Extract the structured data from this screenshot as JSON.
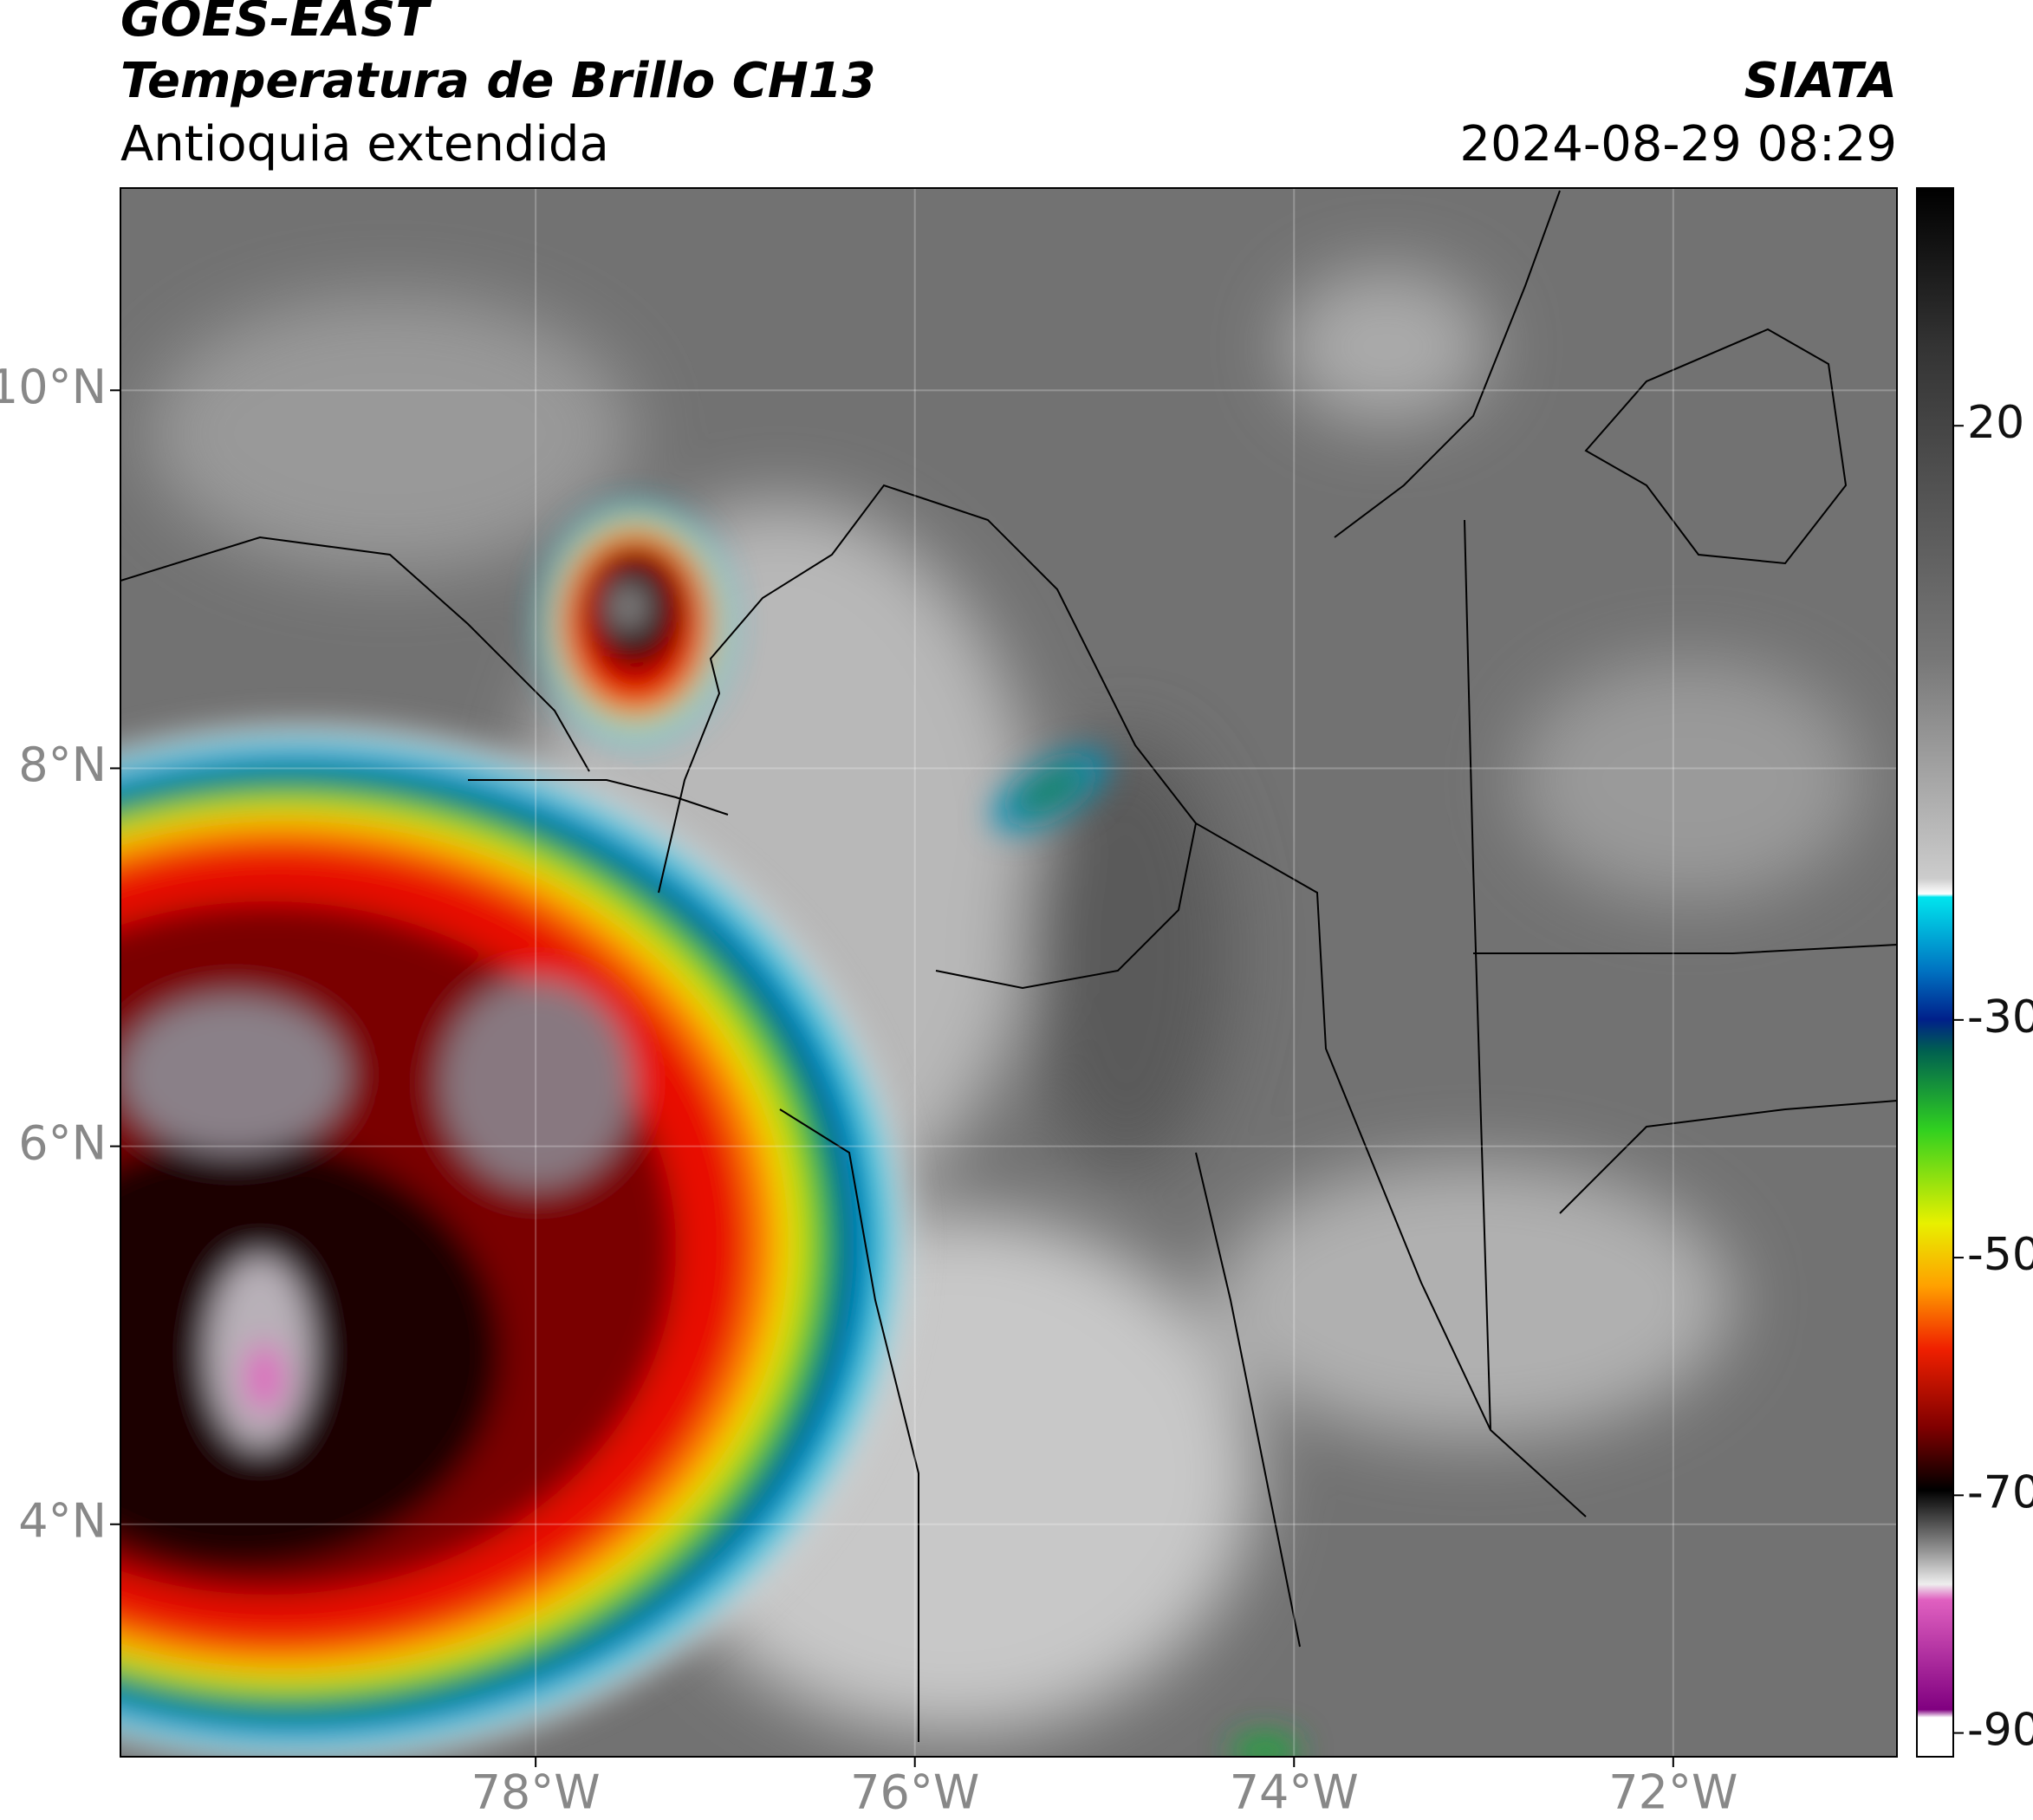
{
  "header": {
    "title": "GOES-EAST",
    "subtitle": "Temperatura de Brillo CH13",
    "region": "Antioquia extendida",
    "source": "SIATA",
    "datetime": "2024-08-29 08:29"
  },
  "map": {
    "xlim": [
      -80.19,
      -70.82
    ],
    "ylim": [
      2.77,
      11.07
    ],
    "xticks": [
      {
        "value": -78,
        "label": "78°W"
      },
      {
        "value": -76,
        "label": "76°W"
      },
      {
        "value": -74,
        "label": "74°W"
      },
      {
        "value": -72,
        "label": "72°W"
      }
    ],
    "yticks": [
      {
        "value": 4,
        "label": "4°N"
      },
      {
        "value": 6,
        "label": "6°N"
      },
      {
        "value": 8,
        "label": "8°N"
      },
      {
        "value": 10,
        "label": "10°N"
      }
    ]
  },
  "colorbar": {
    "lim": [
      -92,
      40
    ],
    "ticks": [
      -90,
      -70,
      -50,
      -30,
      20
    ]
  }
}
